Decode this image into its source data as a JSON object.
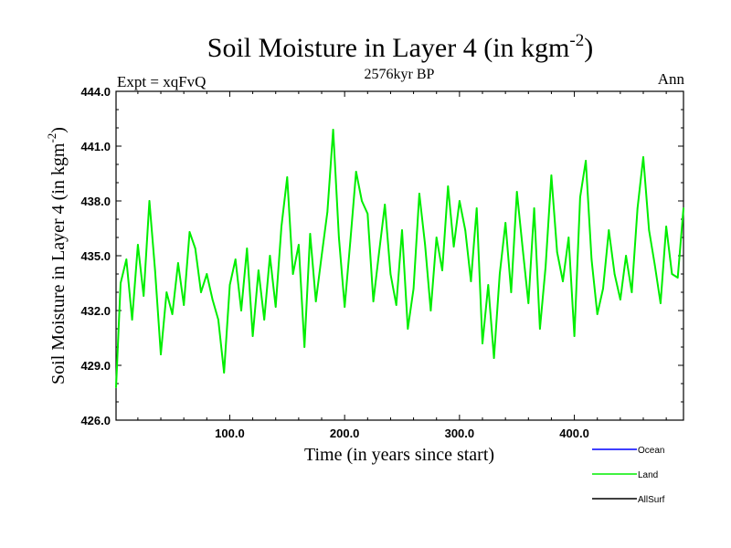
{
  "chart_data": {
    "type": "line",
    "title": "Soil Moisture in Layer 4 (in kgm",
    "title_superscript": "-2",
    "title_close": ")",
    "subtitle": "2576kyr BP",
    "left_label": "Expt = xqFvQ",
    "right_label": "Ann",
    "xlabel": "Time (in years since start)",
    "ylabel": "Soil Moisture in Layer 4 (in kgm",
    "ylabel_superscript": "-2",
    "ylabel_close": ")",
    "xlim": [
      1,
      495
    ],
    "ylim": [
      426.0,
      444.0
    ],
    "xticks": [
      100.0,
      200.0,
      300.0,
      400.0
    ],
    "xtick_labels": [
      "100.0",
      "200.0",
      "300.0",
      "400.0"
    ],
    "yticks": [
      426.0,
      429.0,
      432.0,
      435.0,
      438.0,
      441.0,
      444.0
    ],
    "ytick_labels": [
      "426.0",
      "429.0",
      "432.0",
      "435.0",
      "438.0",
      "441.0",
      "444.0"
    ],
    "legend": [
      {
        "name": "Ocean",
        "color": "#0000ff"
      },
      {
        "name": "Land",
        "color": "#00ee00"
      },
      {
        "name": "AllSurf",
        "color": "#000000"
      }
    ],
    "series": [
      {
        "name": "Land",
        "color": "#00ee00",
        "x": [
          1,
          5,
          10,
          15,
          20,
          25,
          30,
          35,
          40,
          45,
          50,
          55,
          60,
          65,
          70,
          75,
          80,
          85,
          90,
          95,
          100,
          105,
          110,
          115,
          120,
          125,
          130,
          135,
          140,
          145,
          150,
          155,
          160,
          165,
          170,
          175,
          180,
          185,
          190,
          195,
          200,
          205,
          210,
          215,
          220,
          225,
          230,
          235,
          240,
          245,
          250,
          255,
          260,
          265,
          270,
          275,
          280,
          285,
          290,
          295,
          300,
          305,
          310,
          315,
          320,
          325,
          330,
          335,
          340,
          345,
          350,
          355,
          360,
          365,
          370,
          375,
          380,
          385,
          390,
          395,
          400,
          405,
          410,
          415,
          420,
          425,
          430,
          435,
          440,
          445,
          450,
          455,
          460,
          465,
          470,
          475,
          480,
          485,
          490,
          495
        ],
        "values": [
          427.8,
          433.5,
          434.8,
          431.5,
          435.6,
          432.8,
          438.0,
          434.2,
          429.6,
          433.0,
          431.8,
          434.6,
          432.3,
          436.3,
          435.4,
          433.0,
          434.0,
          432.6,
          431.5,
          428.6,
          433.4,
          434.8,
          432.0,
          435.4,
          430.6,
          434.2,
          431.5,
          435.0,
          432.2,
          436.6,
          439.3,
          434.0,
          435.6,
          430.0,
          436.2,
          432.5,
          435.0,
          437.4,
          441.9,
          436.0,
          432.2,
          435.8,
          439.6,
          438.0,
          437.3,
          432.5,
          435.2,
          437.8,
          434.0,
          432.3,
          436.4,
          431.0,
          433.2,
          438.4,
          435.6,
          432.0,
          436.0,
          434.2,
          438.8,
          435.5,
          438.0,
          436.4,
          433.6,
          437.6,
          430.2,
          433.4,
          429.4,
          434.0,
          436.8,
          433.0,
          438.5,
          435.4,
          432.4,
          437.6,
          431.0,
          434.4,
          439.4,
          435.2,
          433.6,
          436.0,
          430.6,
          438.2,
          440.2,
          434.8,
          431.8,
          433.2,
          436.4,
          434.0,
          432.6,
          435.0,
          433.0,
          437.6,
          440.4,
          436.4,
          434.5,
          432.4,
          436.6,
          434.0,
          433.8,
          437.6
        ]
      }
    ]
  }
}
